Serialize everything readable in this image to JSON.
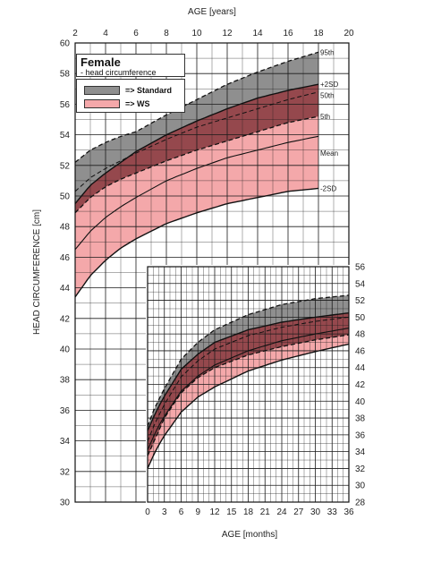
{
  "colors": {
    "standard_band": "#8f8f8f",
    "ws_band": "#f4a8aa",
    "overlap_band": "#95484d",
    "grid": "#1a1a1a"
  },
  "legend": {
    "title": "Female",
    "subtitle": "- head circumference",
    "items": [
      {
        "label": "=> Standard",
        "color": "#8f8f8f"
      },
      {
        "label": "=> WS",
        "color": "#f4a8aa"
      }
    ]
  },
  "chart_data": [
    {
      "type": "area",
      "xlabel": "AGE  [years]",
      "ylabel": "HEAD CIRCUMFERENCE  [cm]",
      "xlim": [
        2,
        20
      ],
      "ylim": [
        30,
        60
      ],
      "xticks": [
        2,
        4,
        6,
        8,
        10,
        12,
        14,
        16,
        18,
        20
      ],
      "yticks": [
        30,
        32,
        34,
        36,
        38,
        40,
        42,
        44,
        46,
        48,
        50,
        52,
        54,
        56,
        58,
        60
      ],
      "curve_labels": [
        "95th",
        "+2SD",
        "50th",
        "5th",
        "Mean",
        "-2SD"
      ],
      "legend_position": "top-left",
      "x": [
        2,
        3,
        4,
        5,
        6,
        8,
        10,
        12,
        14,
        16,
        18
      ],
      "series": [
        {
          "name": "Standard",
          "lower": [
            48.9,
            49.9,
            50.6,
            51.1,
            51.5,
            52.3,
            53.0,
            53.6,
            54.2,
            54.8,
            55.2
          ],
          "upper": [
            52.2,
            53.0,
            53.5,
            53.9,
            54.2,
            55.3,
            56.3,
            57.3,
            58.1,
            58.8,
            59.4
          ],
          "median": [
            50.3,
            51.2,
            51.8,
            52.3,
            52.8,
            53.7,
            54.5,
            55.1,
            55.7,
            56.3,
            56.8
          ]
        },
        {
          "name": "WS",
          "lower": [
            43.4,
            44.8,
            45.8,
            46.6,
            47.2,
            48.2,
            48.9,
            49.5,
            49.9,
            50.3,
            50.5
          ],
          "upper": [
            49.5,
            50.7,
            51.5,
            52.2,
            52.9,
            54.0,
            54.9,
            55.7,
            56.4,
            56.9,
            57.3
          ],
          "mean": [
            46.5,
            47.7,
            48.6,
            49.3,
            49.9,
            51.0,
            51.8,
            52.5,
            53.0,
            53.5,
            53.9
          ]
        }
      ]
    },
    {
      "type": "area",
      "xlabel": "AGE  [months]",
      "xlim": [
        0,
        36
      ],
      "ylim": [
        28,
        56
      ],
      "xticks": [
        0,
        3,
        6,
        9,
        12,
        15,
        18,
        21,
        24,
        27,
        30,
        33,
        36
      ],
      "yticks": [
        28,
        30,
        32,
        34,
        36,
        38,
        40,
        42,
        44,
        46,
        48,
        50,
        52,
        54,
        56
      ],
      "x": [
        0,
        1,
        2,
        3,
        6,
        9,
        12,
        18,
        24,
        30,
        36
      ],
      "series": [
        {
          "name": "Standard",
          "lower": [
            33.5,
            35.0,
            36.5,
            38.0,
            41.0,
            42.8,
            44.0,
            45.5,
            46.5,
            47.3,
            47.9
          ],
          "upper": [
            37.0,
            38.8,
            40.2,
            41.5,
            45.0,
            47.0,
            48.5,
            50.3,
            51.5,
            52.2,
            52.6
          ],
          "median": [
            35.2,
            36.9,
            38.3,
            39.6,
            42.9,
            44.8,
            46.2,
            47.8,
            48.8,
            49.5,
            50.0
          ]
        },
        {
          "name": "WS",
          "lower": [
            32.0,
            33.5,
            34.8,
            35.9,
            38.7,
            40.5,
            41.7,
            43.6,
            44.9,
            45.9,
            46.8
          ],
          "upper": [
            36.5,
            38.0,
            39.4,
            40.6,
            43.8,
            45.6,
            47.0,
            48.5,
            49.4,
            50.0,
            50.5
          ],
          "mean": [
            34.2,
            35.7,
            37.1,
            38.2,
            41.2,
            43.0,
            44.3,
            46.0,
            47.2,
            48.0,
            48.7
          ]
        }
      ]
    }
  ]
}
